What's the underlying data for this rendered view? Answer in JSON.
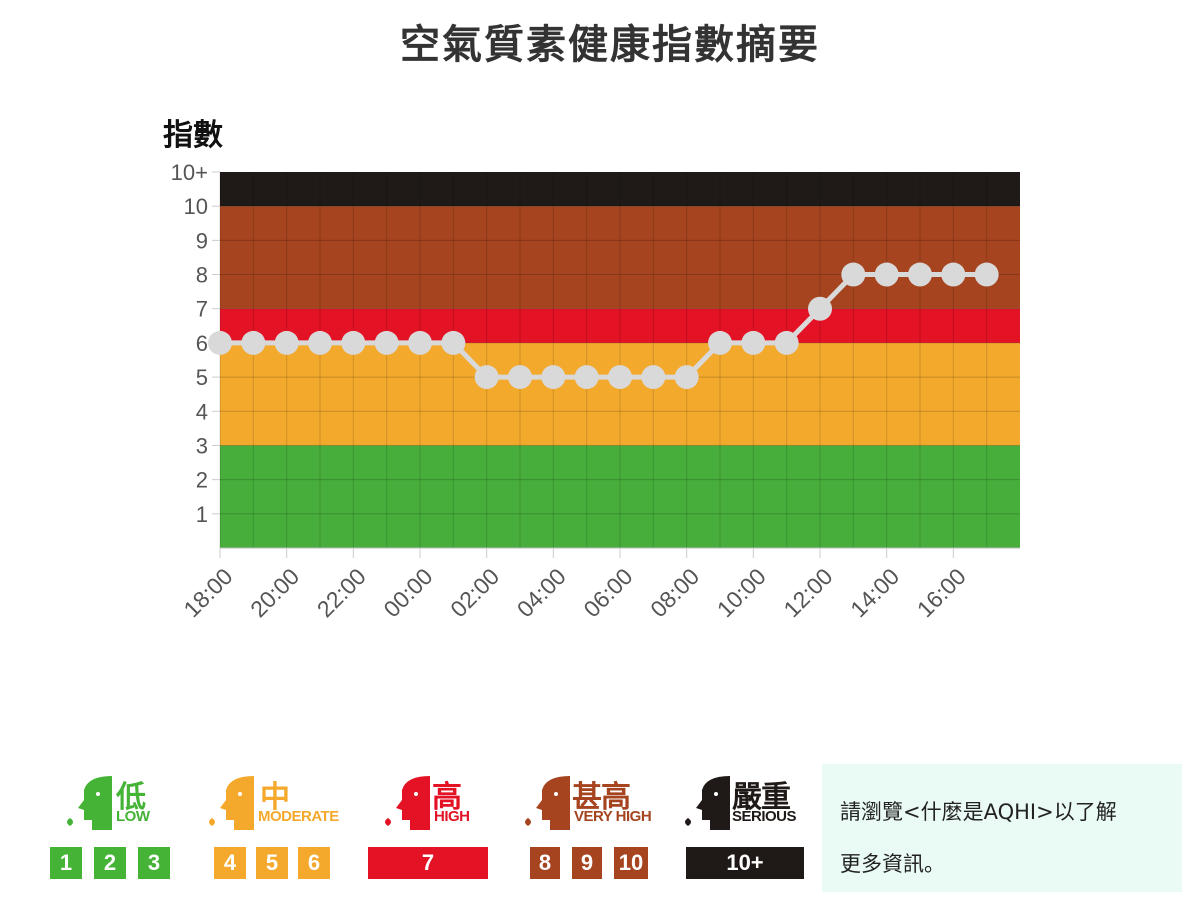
{
  "title": "空氣質素健康指數摘要",
  "y_axis_title": "指數",
  "chart_data": {
    "type": "line",
    "title": "空氣質素健康指數摘要",
    "ylabel": "指數",
    "xlabel": "",
    "ylim": [
      0,
      11
    ],
    "y_ticks": [
      {
        "value": 1,
        "label": "1"
      },
      {
        "value": 2,
        "label": "2"
      },
      {
        "value": 3,
        "label": "3"
      },
      {
        "value": 4,
        "label": "4"
      },
      {
        "value": 5,
        "label": "5"
      },
      {
        "value": 6,
        "label": "6"
      },
      {
        "value": 7,
        "label": "7"
      },
      {
        "value": 8,
        "label": "8"
      },
      {
        "value": 9,
        "label": "9"
      },
      {
        "value": 10,
        "label": "10"
      },
      {
        "value": 11,
        "label": "10+"
      }
    ],
    "x_tick_labels": [
      "18:00",
      "20:00",
      "22:00",
      "00:00",
      "02:00",
      "04:00",
      "06:00",
      "08:00",
      "10:00",
      "12:00",
      "14:00",
      "16:00"
    ],
    "series": [
      {
        "name": "AQHI",
        "values": [
          6,
          6,
          6,
          6,
          6,
          6,
          6,
          6,
          5,
          5,
          5,
          5,
          5,
          5,
          5,
          6,
          6,
          6,
          7,
          8,
          8,
          8,
          8,
          8
        ]
      }
    ],
    "bands": [
      {
        "name": "low",
        "from": 0,
        "to": 3,
        "color": "#47ad3b"
      },
      {
        "name": "moderate",
        "from": 3,
        "to": 6,
        "color": "#f2a92c"
      },
      {
        "name": "high",
        "from": 6,
        "to": 7,
        "color": "#e31225"
      },
      {
        "name": "very-high",
        "from": 7,
        "to": 10,
        "color": "#a5441f"
      },
      {
        "name": "serious",
        "from": 10,
        "to": 11,
        "color": "#1f1a17"
      }
    ],
    "grid": true,
    "line_color": "#d9d9d9"
  },
  "legend": {
    "low": {
      "zh": "低",
      "en": "LOW",
      "color": "#45b336",
      "boxes": [
        "1",
        "2",
        "3"
      ]
    },
    "moderate": {
      "zh": "中",
      "en": "MODERATE",
      "color": "#f4a92c",
      "boxes": [
        "4",
        "5",
        "6"
      ]
    },
    "high": {
      "zh": "高",
      "en": "HIGH",
      "color": "#e31225",
      "boxes": [
        "7"
      ]
    },
    "very_high": {
      "zh": "甚高",
      "en": "VERY HIGH",
      "color": "#a5441f",
      "boxes": [
        "8",
        "9",
        "10"
      ]
    },
    "serious": {
      "zh": "嚴重",
      "en": "SERIOUS",
      "color": "#1f1a17",
      "boxes": [
        "10+"
      ]
    }
  },
  "info": {
    "line1": "請瀏覽<什麼是AQHI>以了解",
    "line2": "更多資訊。"
  }
}
